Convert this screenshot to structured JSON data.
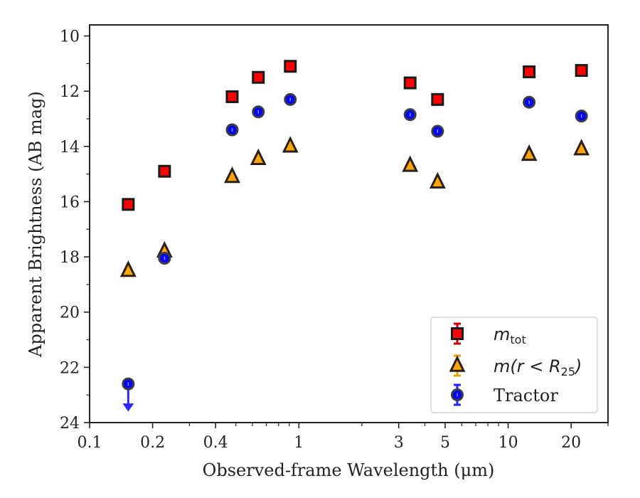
{
  "chart_data": {
    "type": "scatter",
    "xscale": "log",
    "yaxis_inverted": true,
    "xlim": [
      0.1,
      30
    ],
    "ylim": [
      24,
      9.6
    ],
    "grid": false,
    "xlabel": "Observed-frame Wavelength (μm)",
    "ylabel": "Apparent Brightness (AB mag)",
    "xticks": [
      {
        "value": 0.1,
        "label": "0.1"
      },
      {
        "value": 0.2,
        "label": "0.2"
      },
      {
        "value": 0.4,
        "label": "0.4"
      },
      {
        "value": 1,
        "label": "1"
      },
      {
        "value": 3,
        "label": "3"
      },
      {
        "value": 5,
        "label": "5"
      },
      {
        "value": 10,
        "label": "10"
      },
      {
        "value": 20,
        "label": "20"
      }
    ],
    "yticks": [
      {
        "value": 10,
        "label": "10"
      },
      {
        "value": 12,
        "label": "12"
      },
      {
        "value": 14,
        "label": "14"
      },
      {
        "value": 16,
        "label": "16"
      },
      {
        "value": 18,
        "label": "18"
      },
      {
        "value": 20,
        "label": "20"
      },
      {
        "value": 22,
        "label": "22"
      },
      {
        "value": 24,
        "label": "24"
      }
    ],
    "legend_position": "lower right",
    "series": [
      {
        "id": "mtot",
        "legend_label": {
          "base": "m",
          "sub": "tot",
          "tail": ""
        },
        "marker": "square",
        "color": "#ff0000",
        "errorbar_color": "#cc0000",
        "x": [
          0.153,
          0.228,
          0.48,
          0.64,
          0.91,
          3.4,
          4.6,
          12.6,
          22.4
        ],
        "y": [
          16.1,
          14.9,
          12.2,
          11.5,
          11.1,
          11.7,
          12.3,
          11.3,
          11.25
        ]
      },
      {
        "id": "mr25",
        "legend_label": {
          "base": "m(r < R",
          "sub": "25",
          "tail": ")"
        },
        "marker": "triangle",
        "color": "#ffa500",
        "errorbar_color": "#e6a100",
        "x": [
          0.153,
          0.228,
          0.48,
          0.64,
          0.91,
          3.4,
          4.6,
          12.6,
          22.4
        ],
        "y": [
          18.5,
          17.8,
          15.1,
          14.45,
          14.0,
          14.7,
          15.3,
          14.3,
          14.1
        ]
      },
      {
        "id": "tractor",
        "legend_label": {
          "base": "Tractor",
          "sub": "",
          "tail": ""
        },
        "marker": "circle",
        "color": "#0000ff",
        "errorbar_color": "#2222ff",
        "x": [
          0.153,
          0.228,
          0.48,
          0.64,
          0.91,
          3.4,
          4.6,
          12.6,
          22.4
        ],
        "y": [
          22.6,
          18.05,
          13.4,
          12.75,
          12.3,
          12.85,
          13.45,
          12.4,
          12.9
        ],
        "upper_limits": [
          true,
          false,
          false,
          false,
          false,
          false,
          false,
          false,
          false
        ]
      }
    ]
  }
}
